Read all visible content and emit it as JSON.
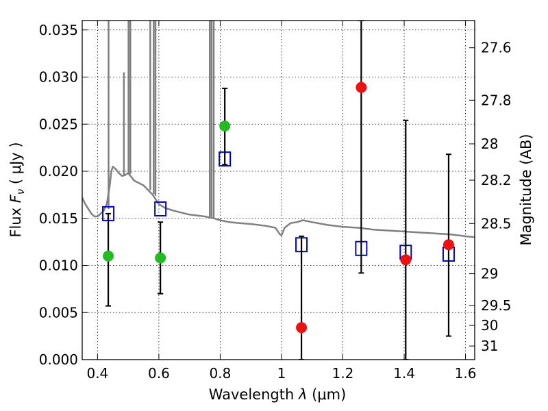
{
  "chart_data": {
    "type": "scatter",
    "xlabel_prefix": "Wavelength ",
    "xlabel_symbol": "λ",
    "xlabel_unit": " (μm)",
    "ylabel_prefix": "Flux  ",
    "ylabel_symbol": "F",
    "ylabel_subscript": "ν",
    "ylabel_unit": "  ( μJy )",
    "y2label": "Magnitude (AB)",
    "xlim": [
      0.35,
      1.63
    ],
    "ylim": [
      0.0,
      0.036
    ],
    "grid": true,
    "x_ticks": [
      {
        "value": 0.4,
        "label": "0.4"
      },
      {
        "value": 0.6,
        "label": "0.6"
      },
      {
        "value": 0.8,
        "label": "0.8"
      },
      {
        "value": 1.0,
        "label": "1"
      },
      {
        "value": 1.2,
        "label": "1.2"
      },
      {
        "value": 1.4,
        "label": "1.4"
      },
      {
        "value": 1.6,
        "label": "1.6"
      }
    ],
    "y_ticks": [
      {
        "value": 0.0,
        "label": "0.000"
      },
      {
        "value": 0.005,
        "label": "0.005"
      },
      {
        "value": 0.01,
        "label": "0.010"
      },
      {
        "value": 0.015,
        "label": "0.015"
      },
      {
        "value": 0.02,
        "label": "0.020"
      },
      {
        "value": 0.025,
        "label": "0.025"
      },
      {
        "value": 0.03,
        "label": "0.030"
      },
      {
        "value": 0.035,
        "label": "0.035"
      }
    ],
    "y2_ticks": [
      {
        "mag": 27.6,
        "label": "27.6"
      },
      {
        "mag": 27.8,
        "label": "27.8"
      },
      {
        "mag": 28.0,
        "label": "28"
      },
      {
        "mag": 28.2,
        "label": "28.2"
      },
      {
        "mag": 28.5,
        "label": "28.5"
      },
      {
        "mag": 29.0,
        "label": "29"
      },
      {
        "mag": 29.5,
        "label": "29.5"
      },
      {
        "mag": 30.0,
        "label": "30"
      },
      {
        "mag": 31.0,
        "label": "31"
      }
    ],
    "series": [
      {
        "kind": "line",
        "color": "#808080",
        "points": [
          [
            0.35,
            0.0172
          ],
          [
            0.36,
            0.0165
          ],
          [
            0.37,
            0.016
          ],
          [
            0.38,
            0.0155
          ],
          [
            0.39,
            0.0152
          ],
          [
            0.4,
            0.0152
          ],
          [
            0.41,
            0.0155
          ],
          [
            0.42,
            0.0158
          ],
          [
            0.43,
            0.0165
          ],
          [
            0.435,
            0.0175
          ],
          [
            0.44,
            0.0185
          ],
          [
            0.445,
            0.02
          ],
          [
            0.45,
            0.0205
          ],
          [
            0.46,
            0.0202
          ],
          [
            0.47,
            0.0198
          ],
          [
            0.48,
            0.0195
          ],
          [
            0.49,
            0.0196
          ],
          [
            0.5,
            0.0198
          ],
          [
            0.52,
            0.019
          ],
          [
            0.55,
            0.0185
          ],
          [
            0.58,
            0.0175
          ],
          [
            0.6,
            0.0165
          ],
          [
            0.62,
            0.0161
          ],
          [
            0.65,
            0.0158
          ],
          [
            0.7,
            0.0154
          ],
          [
            0.75,
            0.0152
          ],
          [
            0.78,
            0.015
          ],
          [
            0.8,
            0.0148
          ],
          [
            0.83,
            0.0146
          ],
          [
            0.86,
            0.0145
          ],
          [
            0.9,
            0.0144
          ],
          [
            0.95,
            0.0142
          ],
          [
            0.98,
            0.014
          ],
          [
            0.995,
            0.0133
          ],
          [
            1.0,
            0.0132
          ],
          [
            1.01,
            0.014
          ],
          [
            1.03,
            0.0145
          ],
          [
            1.05,
            0.0146
          ],
          [
            1.07,
            0.0148
          ],
          [
            1.1,
            0.0146
          ],
          [
            1.15,
            0.0143
          ],
          [
            1.2,
            0.0141
          ],
          [
            1.25,
            0.014
          ],
          [
            1.3,
            0.0138
          ],
          [
            1.35,
            0.0137
          ],
          [
            1.4,
            0.0136
          ],
          [
            1.45,
            0.0135
          ],
          [
            1.5,
            0.0134
          ],
          [
            1.55,
            0.0133
          ],
          [
            1.6,
            0.0131
          ],
          [
            1.63,
            0.013
          ]
        ]
      },
      {
        "kind": "emission_lines",
        "color": "#808080",
        "lines": [
          {
            "x": 0.436,
            "base": 0.016,
            "top": 0.036
          },
          {
            "x": 0.486,
            "base": 0.0196,
            "top": 0.0305
          },
          {
            "x": 0.501,
            "base": 0.0198,
            "top": 0.036
          },
          {
            "x": 0.507,
            "base": 0.0197,
            "top": 0.036
          },
          {
            "x": 0.572,
            "base": 0.018,
            "top": 0.036
          },
          {
            "x": 0.583,
            "base": 0.0176,
            "top": 0.036
          },
          {
            "x": 0.589,
            "base": 0.0174,
            "top": 0.036
          },
          {
            "x": 0.766,
            "base": 0.0152,
            "top": 0.036
          },
          {
            "x": 0.772,
            "base": 0.0151,
            "top": 0.036
          },
          {
            "x": 0.779,
            "base": 0.015,
            "top": 0.036
          }
        ]
      },
      {
        "kind": "squares",
        "color": "#0000cc",
        "points": [
          {
            "x": 0.435,
            "y": 0.0155
          },
          {
            "x": 0.605,
            "y": 0.016
          },
          {
            "x": 0.815,
            "y": 0.0213
          },
          {
            "x": 1.065,
            "y": 0.0122
          },
          {
            "x": 1.26,
            "y": 0.0118
          },
          {
            "x": 1.405,
            "y": 0.0114
          },
          {
            "x": 1.545,
            "y": 0.0112
          }
        ]
      },
      {
        "kind": "dots",
        "color": "#22bb22",
        "points": [
          {
            "x": 0.435,
            "y": 0.011,
            "err_low": 0.0057,
            "err_high": 0.0155
          },
          {
            "x": 0.605,
            "y": 0.0108,
            "err_low": 0.007,
            "err_high": 0.0146
          },
          {
            "x": 0.815,
            "y": 0.0248,
            "err_low": 0.0207,
            "err_high": 0.0288
          }
        ]
      },
      {
        "kind": "dots",
        "color": "#ee1111",
        "points": [
          {
            "x": 1.065,
            "y": 0.0034,
            "err_low": 0.0,
            "err_high": 0.0131
          },
          {
            "x": 1.26,
            "y": 0.0289,
            "err_low": 0.0092,
            "err_high": 0.036
          },
          {
            "x": 1.405,
            "y": 0.0106,
            "err_low": 0.0,
            "err_high": 0.0254
          },
          {
            "x": 1.545,
            "y": 0.0122,
            "err_low": 0.0025,
            "err_high": 0.0218
          }
        ]
      }
    ]
  }
}
